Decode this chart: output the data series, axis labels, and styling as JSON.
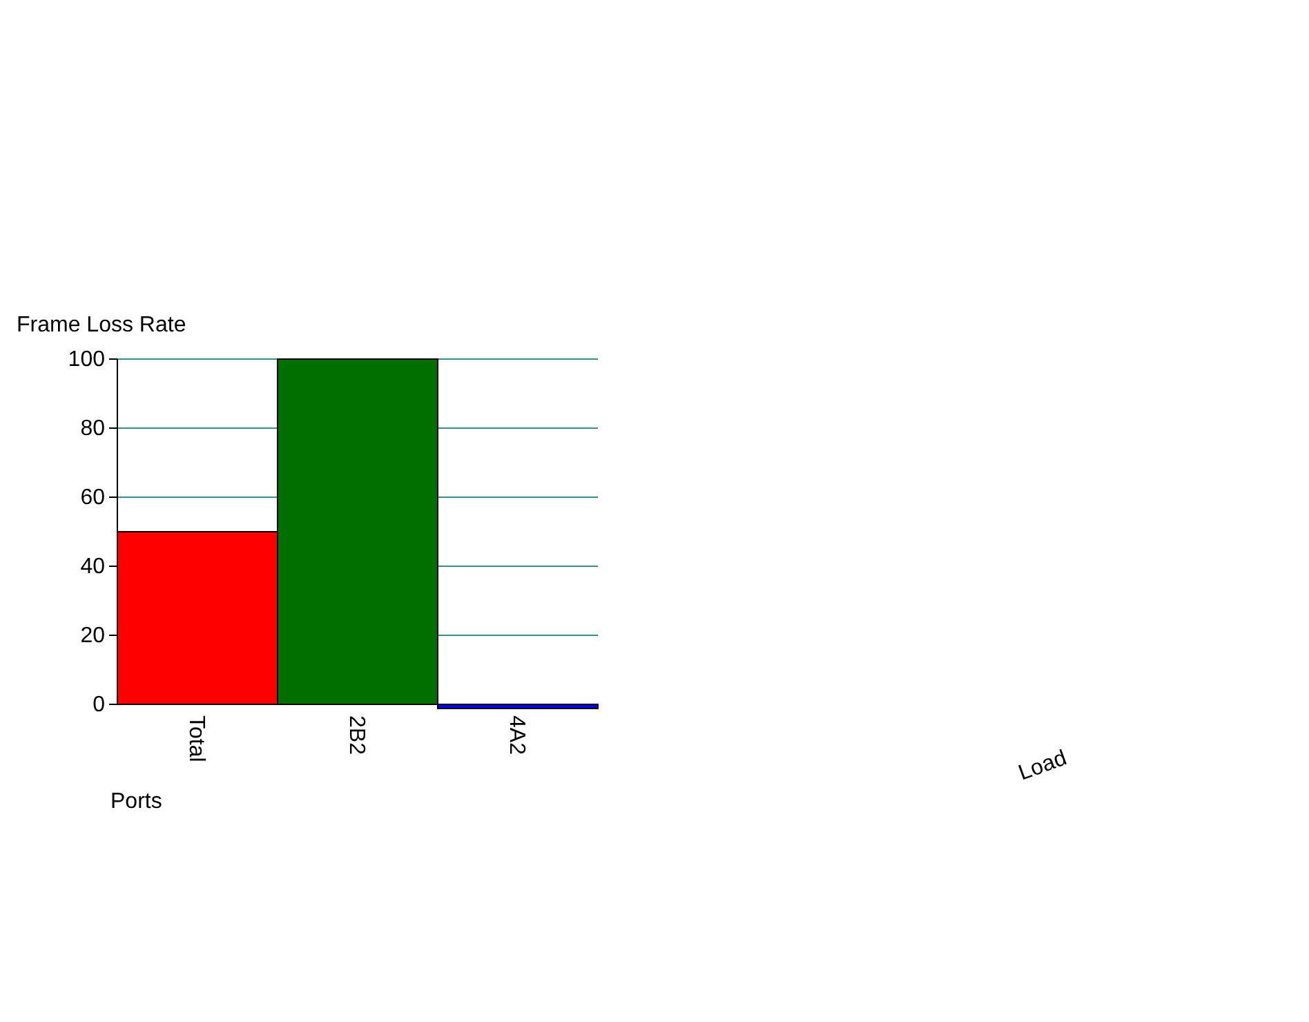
{
  "chart_data": {
    "type": "bar",
    "ylabel": "Frame Loss Rate",
    "xlabel": "Ports",
    "categories": [
      "Total",
      "2B2",
      "4A2"
    ],
    "values": [
      50,
      100,
      0
    ],
    "colors": [
      "#ff0000",
      "#006f00",
      "#0000ff"
    ],
    "ylim": [
      0,
      100
    ],
    "yticks": [
      0,
      20,
      40,
      60,
      80,
      100
    ],
    "grid": "y",
    "annotations": [
      "Load"
    ]
  }
}
